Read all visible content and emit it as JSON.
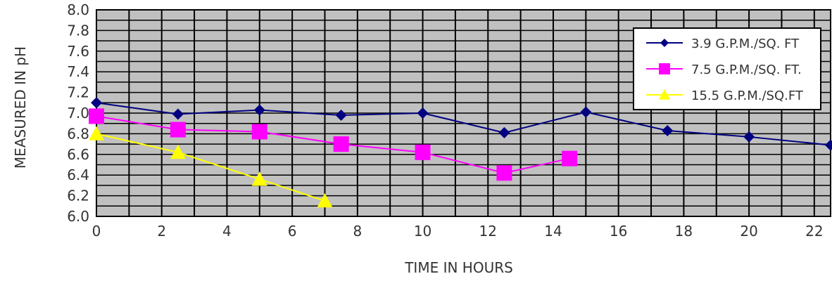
{
  "chart_data": {
    "type": "line",
    "title": "",
    "xlabel": "TIME IN HOURS",
    "ylabel": "MEASURED IN pH",
    "xlim": [
      0,
      22.5
    ],
    "ylim": [
      6.0,
      8.0
    ],
    "x_ticks": [
      0,
      2,
      4,
      6,
      8,
      10,
      12,
      14,
      16,
      18,
      20,
      22
    ],
    "y_ticks": [
      "6.0",
      "6.2",
      "6.4",
      "6.6",
      "6.8",
      "7.0",
      "7.2",
      "7.4",
      "7.6",
      "7.8",
      "8.0"
    ],
    "grid": true,
    "legend_position": "top-right",
    "plot_background": "#c0c0c0",
    "series": [
      {
        "name": "3.9 G.P.M./SQ. FT",
        "color": "#000080",
        "marker": "diamond",
        "x": [
          0,
          2.5,
          5,
          7.5,
          10,
          12.5,
          15,
          17.5,
          20,
          22.5
        ],
        "y": [
          7.1,
          6.99,
          7.03,
          6.98,
          7.0,
          6.81,
          7.01,
          6.83,
          6.77,
          6.69
        ]
      },
      {
        "name": "7.5 G.P.M./SQ. FT.",
        "color": "#ff00ff",
        "marker": "square",
        "x": [
          0,
          2.5,
          5,
          7.5,
          10,
          12.5,
          14.5
        ],
        "y": [
          6.97,
          6.84,
          6.82,
          6.7,
          6.62,
          6.42,
          6.56
        ]
      },
      {
        "name": "15.5 G.P.M./SQ.FT",
        "color": "#ffff00",
        "marker": "triangle",
        "x": [
          0,
          2.5,
          5,
          7
        ],
        "y": [
          6.8,
          6.62,
          6.36,
          6.15
        ]
      }
    ]
  }
}
